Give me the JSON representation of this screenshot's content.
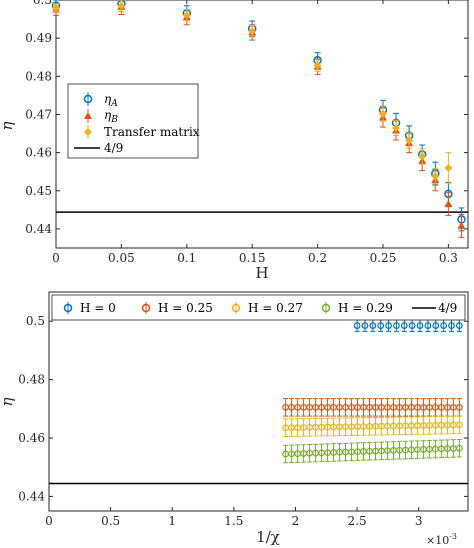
{
  "chart_data": [
    {
      "type": "scatter",
      "xlabel": "H",
      "ylabel": "η",
      "xlim": [
        0,
        0.315
      ],
      "ylim": [
        0.435,
        0.5
      ],
      "xticks": [
        "0",
        "0.05",
        "0.1",
        "0.15",
        "0.2",
        "0.25",
        "0.3"
      ],
      "xtick_values": [
        0,
        0.05,
        0.1,
        0.15,
        0.2,
        0.25,
        0.3
      ],
      "yticks": [
        "0.44",
        "0.45",
        "0.46",
        "0.47",
        "0.48",
        "0.49",
        "0.5"
      ],
      "ytick_values": [
        0.44,
        0.45,
        0.46,
        0.47,
        0.48,
        0.49,
        0.5
      ],
      "legend_position": "left-center",
      "series": [
        {
          "name": "η_A",
          "color": "#0072BD",
          "marker": "circle-open",
          "x": [
            0,
            0.05,
            0.1,
            0.15,
            0.2,
            0.25,
            0.26,
            0.27,
            0.28,
            0.29,
            0.3,
            0.31
          ],
          "y": [
            0.4985,
            0.499,
            0.4965,
            0.4925,
            0.4842,
            0.4712,
            0.4678,
            0.4645,
            0.4595,
            0.4545,
            0.4492,
            0.4425
          ],
          "err": [
            0.0015,
            0.002,
            0.002,
            0.002,
            0.002,
            0.0025,
            0.0025,
            0.0025,
            0.0025,
            0.003,
            0.003,
            0.003
          ]
        },
        {
          "name": "η_B",
          "color": "#D95319",
          "marker": "triangle",
          "x": [
            0,
            0.05,
            0.1,
            0.15,
            0.2,
            0.25,
            0.26,
            0.27,
            0.28,
            0.29,
            0.3,
            0.31
          ],
          "y": [
            0.4975,
            0.4982,
            0.4955,
            0.4915,
            0.4825,
            0.4692,
            0.4658,
            0.4625,
            0.4578,
            0.4528,
            0.4465,
            0.4408
          ],
          "err": [
            0.0015,
            0.002,
            0.002,
            0.002,
            0.002,
            0.0025,
            0.0025,
            0.0025,
            0.0025,
            0.0028,
            0.003,
            0.003
          ]
        },
        {
          "name": "Transfer matrix",
          "color": "#EDB120",
          "marker": "diamond",
          "x": [
            0,
            0.05,
            0.1,
            0.15,
            0.2,
            0.25,
            0.26,
            0.27,
            0.28,
            0.29,
            0.3
          ],
          "y": [
            0.498,
            0.4985,
            0.496,
            0.4918,
            0.4828,
            0.4702,
            0.4665,
            0.4632,
            0.459,
            0.4538,
            0.456
          ],
          "err": [
            0.001,
            0.0015,
            0.0015,
            0.0015,
            0.0015,
            0.002,
            0.002,
            0.002,
            0.002,
            0.002,
            0.004
          ]
        },
        {
          "name": "4/9",
          "color": "#000000",
          "marker": "line",
          "y_const": 0.4444
        }
      ]
    },
    {
      "type": "scatter",
      "xlabel": "1/χ",
      "ylabel": "η",
      "x_exponent": "×10",
      "x_exponent_power": "-3",
      "xlim": [
        0,
        3.4
      ],
      "ylim": [
        0.435,
        0.51
      ],
      "xticks": [
        "0",
        "0.5",
        "1",
        "1.5",
        "2",
        "2.5",
        "3"
      ],
      "xtick_values": [
        0,
        0.5,
        1,
        1.5,
        2,
        2.5,
        3
      ],
      "yticks": [
        "0.44",
        "0.46",
        "0.48",
        "0.5"
      ],
      "ytick_values": [
        0.44,
        0.46,
        0.48,
        0.5
      ],
      "legend_position": "top",
      "series": [
        {
          "name": "H = 0",
          "color": "#0072BD",
          "x_range": [
            2.5,
            3.33
          ],
          "n_points": 14,
          "y": [
            0.4985,
            0.4985,
            0.4985,
            0.4985,
            0.4985,
            0.4985,
            0.4985,
            0.4985,
            0.4985,
            0.4985,
            0.4985,
            0.4985,
            0.4985,
            0.4985
          ],
          "err": 0.002
        },
        {
          "name": "H = 0.25",
          "color": "#D95319",
          "x_range": [
            1.92,
            3.33
          ],
          "n_points": 30,
          "y_start": 0.4705,
          "y_end": 0.4705,
          "err": 0.003
        },
        {
          "name": "H = 0.27",
          "color": "#EDB120",
          "x_range": [
            1.92,
            3.33
          ],
          "n_points": 30,
          "y_start": 0.4635,
          "y_end": 0.4645,
          "err": 0.003
        },
        {
          "name": "H = 0.29",
          "color": "#77AC30",
          "x_range": [
            1.92,
            3.33
          ],
          "n_points": 30,
          "y_start": 0.4545,
          "y_end": 0.4565,
          "err": 0.003
        },
        {
          "name": "4/9",
          "color": "#000000",
          "marker": "line",
          "y_const": 0.4444
        }
      ]
    }
  ]
}
